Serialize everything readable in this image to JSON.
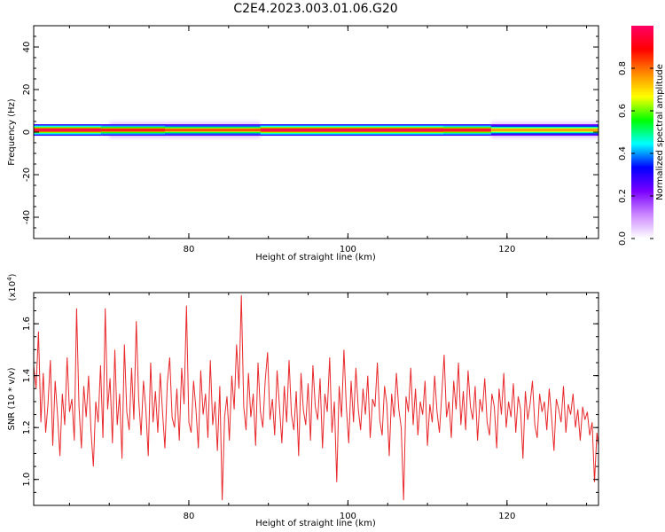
{
  "figure_title": "C2E4.2023.003.01.06.G20",
  "chart_data": [
    {
      "type": "heatmap",
      "panel": "spectrogram",
      "xlabel": "Height of straight line (km)",
      "ylabel": "Frequency (Hz)",
      "xlim": [
        60.5,
        131.5
      ],
      "ylim": [
        -50,
        50
      ],
      "x_ticks": [
        "80",
        "100",
        "120"
      ],
      "x_tick_values": [
        80,
        100,
        120
      ],
      "y_ticks": [
        "40",
        "20",
        "0",
        "-20",
        "-40"
      ],
      "y_tick_values": [
        40,
        20,
        0,
        -20,
        -40
      ],
      "band_center_hz": 1,
      "band_halfwidth_hz": 1.5,
      "band_segments": [
        {
          "x0": 60.5,
          "x1": 69.0,
          "amp": 0.98
        },
        {
          "x0": 69.0,
          "x1": 77.0,
          "amp": 0.92
        },
        {
          "x0": 77.0,
          "x1": 89.0,
          "amp": 0.85
        },
        {
          "x0": 89.0,
          "x1": 112.0,
          "amp": 0.99
        },
        {
          "x0": 112.0,
          "x1": 118.0,
          "amp": 0.95
        },
        {
          "x0": 118.0,
          "x1": 131.5,
          "amp": 0.78
        }
      ],
      "halo": [
        {
          "x0": 70,
          "x1": 89,
          "extent_hz": 4
        },
        {
          "x0": 118,
          "x1": 131.5,
          "extent_hz": 4
        }
      ],
      "colorbar": {
        "label": "Normalized spectral amplitude",
        "ticks": [
          "0.0",
          "0.2",
          "0.4",
          "0.6",
          "0.8"
        ],
        "tick_values": [
          0.0,
          0.2,
          0.4,
          0.6,
          0.8
        ],
        "range": [
          0,
          1
        ],
        "colormap": [
          "#ffffff",
          "#cc88ff",
          "#7a00ff",
          "#0000ff",
          "#00ffff",
          "#00ff00",
          "#ffff00",
          "#ff8800",
          "#ff0000",
          "#ff0066"
        ]
      }
    },
    {
      "type": "line",
      "panel": "snr",
      "xlabel": "Height of straight line (km)",
      "ylabel": "SNR (10 * v/v)",
      "multiplier_label": "(x10",
      "multiplier_exp": "4",
      "multiplier_close": ")",
      "xlim": [
        60.5,
        131.5
      ],
      "ylim": [
        0.9,
        1.72
      ],
      "x_ticks": [
        "80",
        "100",
        "120"
      ],
      "x_tick_values": [
        80,
        100,
        120
      ],
      "y_ticks": [
        "1.6",
        "1.4",
        "1.2",
        "1.0"
      ],
      "y_tick_values": [
        1.6,
        1.4,
        1.2,
        1.0
      ],
      "color": "#e8282b",
      "series": [
        {
          "x": [
            60.5,
            60.8,
            61.1,
            61.4,
            61.7,
            62.0,
            62.3,
            62.6,
            62.9,
            63.2,
            63.5,
            63.8,
            64.1,
            64.4,
            64.7,
            65.0,
            65.3,
            65.6,
            65.9,
            66.2,
            66.5,
            66.8,
            67.1,
            67.4,
            67.7,
            68.0,
            68.3,
            68.6,
            68.9,
            69.2,
            69.5,
            69.8,
            70.1,
            70.4,
            70.7,
            71.0,
            71.3,
            71.6,
            71.9,
            72.2,
            72.5,
            72.8,
            73.1,
            73.4,
            73.7,
            74.0,
            74.3,
            74.6,
            74.9,
            75.2,
            75.5,
            75.8,
            76.1,
            76.4,
            76.7,
            77.0,
            77.3,
            77.6,
            77.9,
            78.2,
            78.5,
            78.8,
            79.1,
            79.4,
            79.7,
            80.0,
            80.3,
            80.6,
            80.9,
            81.2,
            81.5,
            81.8,
            82.1,
            82.4,
            82.7,
            83.0,
            83.3,
            83.6,
            83.9,
            84.2,
            84.5,
            84.8,
            85.1,
            85.4,
            85.7,
            86.0,
            86.3,
            86.6,
            86.9,
            87.2,
            87.5,
            87.8,
            88.1,
            88.4,
            88.7,
            89.0,
            89.3,
            89.6,
            89.9,
            90.2,
            90.5,
            90.8,
            91.1,
            91.4,
            91.7,
            92.0,
            92.3,
            92.6,
            92.9,
            93.2,
            93.5,
            93.8,
            94.1,
            94.4,
            94.7,
            95.0,
            95.3,
            95.6,
            95.9,
            96.2,
            96.5,
            96.8,
            97.1,
            97.4,
            97.7,
            98.0,
            98.3,
            98.6,
            98.9,
            99.2,
            99.5,
            99.8,
            100.1,
            100.4,
            100.7,
            101.0,
            101.3,
            101.6,
            101.9,
            102.2,
            102.5,
            102.8,
            103.1,
            103.4,
            103.7,
            104.0,
            104.3,
            104.6,
            104.9,
            105.2,
            105.5,
            105.8,
            106.1,
            106.4,
            106.7,
            107.0,
            107.3,
            107.6,
            107.9,
            108.2,
            108.5,
            108.8,
            109.1,
            109.4,
            109.7,
            110.0,
            110.3,
            110.6,
            110.9,
            111.2,
            111.5,
            111.8,
            112.1,
            112.4,
            112.7,
            113.0,
            113.3,
            113.6,
            113.9,
            114.2,
            114.5,
            114.8,
            115.1,
            115.4,
            115.7,
            116.0,
            116.3,
            116.6,
            116.9,
            117.2,
            117.5,
            117.8,
            118.1,
            118.4,
            118.7,
            119.0,
            119.3,
            119.6,
            119.9,
            120.2,
            120.5,
            120.8,
            121.1,
            121.4,
            121.7,
            122.0,
            122.3,
            122.6,
            122.9,
            123.2,
            123.5,
            123.8,
            124.1,
            124.4,
            124.7,
            125.0,
            125.3,
            125.6,
            125.9,
            126.2,
            126.5,
            126.8,
            127.1,
            127.4,
            127.7,
            128.0,
            128.3,
            128.6,
            128.9,
            129.2,
            129.5,
            129.8,
            130.1,
            130.4,
            130.7,
            131.0,
            131.3,
            131.5
          ],
          "values": [
            1.44,
            1.35,
            1.57,
            1.22,
            1.41,
            1.18,
            1.29,
            1.46,
            1.13,
            1.38,
            1.25,
            1.09,
            1.33,
            1.21,
            1.47,
            1.26,
            1.31,
            1.15,
            1.66,
            1.28,
            1.12,
            1.36,
            1.24,
            1.4,
            1.19,
            1.05,
            1.3,
            1.22,
            1.44,
            1.16,
            1.66,
            1.27,
            1.39,
            1.14,
            1.5,
            1.21,
            1.33,
            1.08,
            1.52,
            1.26,
            1.19,
            1.43,
            1.23,
            1.61,
            1.31,
            1.17,
            1.38,
            1.27,
            1.09,
            1.45,
            1.22,
            1.34,
            1.18,
            1.41,
            1.26,
            1.12,
            1.37,
            1.47,
            1.24,
            1.2,
            1.35,
            1.15,
            1.43,
            1.29,
            1.67,
            1.22,
            1.18,
            1.38,
            1.27,
            1.12,
            1.42,
            1.25,
            1.33,
            1.16,
            1.46,
            1.21,
            1.3,
            1.11,
            1.36,
            0.92,
            1.24,
            1.32,
            1.15,
            1.4,
            1.27,
            1.52,
            1.35,
            1.71,
            1.28,
            1.19,
            1.41,
            1.24,
            1.33,
            1.13,
            1.45,
            1.26,
            1.2,
            1.38,
            1.49,
            1.23,
            1.31,
            1.17,
            1.42,
            1.28,
            1.14,
            1.36,
            1.22,
            1.46,
            1.25,
            1.19,
            1.34,
            1.09,
            1.41,
            1.27,
            1.21,
            1.37,
            1.15,
            1.44,
            1.28,
            1.23,
            1.39,
            1.12,
            1.33,
            1.26,
            1.47,
            1.18,
            1.3,
            0.99,
            1.36,
            1.24,
            1.5,
            1.28,
            1.14,
            1.38,
            1.22,
            1.43,
            1.27,
            1.19,
            1.35,
            1.25,
            1.4,
            1.16,
            1.31,
            1.28,
            1.45,
            1.23,
            1.17,
            1.36,
            1.29,
            1.09,
            1.33,
            1.24,
            1.41,
            1.27,
            1.2,
            0.92,
            1.32,
            1.26,
            1.43,
            1.21,
            1.35,
            1.17,
            1.3,
            1.25,
            1.38,
            1.13,
            1.29,
            1.22,
            1.4,
            1.26,
            1.18,
            1.33,
            1.48,
            1.24,
            1.3,
            1.16,
            1.38,
            1.27,
            1.45,
            1.21,
            1.34,
            1.19,
            1.42,
            1.28,
            1.23,
            1.36,
            1.15,
            1.31,
            1.26,
            1.39,
            1.22,
            1.17,
            1.33,
            1.28,
            1.12,
            1.35,
            1.25,
            1.41,
            1.2,
            1.3,
            1.24,
            1.37,
            1.18,
            1.32,
            1.27,
            1.08,
            1.34,
            1.23,
            1.29,
            1.38,
            1.21,
            1.16,
            1.33,
            1.26,
            1.3,
            1.19,
            1.35,
            1.24,
            1.11,
            1.31,
            1.27,
            1.22,
            1.36,
            1.18,
            1.29,
            1.25,
            1.33,
            1.2,
            1.27,
            1.15,
            1.28,
            1.23,
            1.26,
            1.17,
            1.22,
            0.99,
            1.18,
            1.13
          ]
        }
      ]
    }
  ]
}
